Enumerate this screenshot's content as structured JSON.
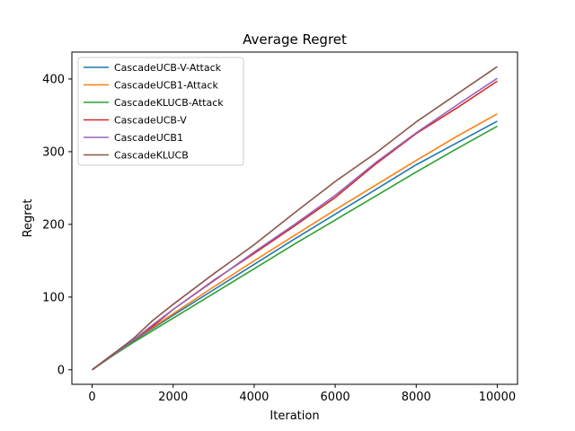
{
  "chart_data": {
    "type": "line",
    "title": "Average Regret",
    "xlabel": "Iteration",
    "ylabel": "Regret",
    "xlim": [
      -500,
      10500
    ],
    "ylim": [
      -20,
      437
    ],
    "xticks": [
      0,
      2000,
      4000,
      6000,
      8000,
      10000
    ],
    "xtick_labels": [
      "0",
      "2000",
      "4000",
      "6000",
      "8000",
      "10000"
    ],
    "yticks": [
      0,
      100,
      200,
      300,
      400
    ],
    "ytick_labels": [
      "0",
      "100",
      "200",
      "300",
      "400"
    ],
    "grid": false,
    "legend_position": "top-left",
    "series": [
      {
        "name": "CascadeUCB-V-Attack",
        "color": "#1f77b4",
        "x": [
          0,
          500,
          1000,
          2000,
          3000,
          4000,
          5000,
          6000,
          7000,
          8000,
          9000,
          10000
        ],
        "y": [
          0,
          20,
          39,
          75,
          110,
          145,
          180,
          214,
          248,
          282,
          312,
          342
        ]
      },
      {
        "name": "CascadeUCB1-Attack",
        "color": "#ff7f0e",
        "x": [
          0,
          500,
          1000,
          2000,
          3000,
          4000,
          5000,
          6000,
          7000,
          8000,
          9000,
          10000
        ],
        "y": [
          0,
          20,
          40,
          77,
          114,
          150,
          185,
          220,
          254,
          288,
          321,
          352
        ]
      },
      {
        "name": "CascadeKLUCB-Attack",
        "color": "#2ca02c",
        "x": [
          0,
          500,
          1000,
          2000,
          3000,
          4000,
          5000,
          6000,
          7000,
          8000,
          9000,
          10000
        ],
        "y": [
          0,
          19,
          37,
          71,
          105,
          139,
          173,
          206,
          239,
          272,
          304,
          335
        ]
      },
      {
        "name": "CascadeUCB-V",
        "color": "#d62728",
        "x": [
          0,
          500,
          1000,
          1500,
          2000,
          3000,
          4000,
          5000,
          6000,
          7000,
          8000,
          9000,
          10000
        ],
        "y": [
          0,
          20,
          40,
          60,
          83,
          123,
          160,
          198,
          237,
          283,
          325,
          360,
          397
        ]
      },
      {
        "name": "CascadeUCB1",
        "color": "#9467bd",
        "x": [
          0,
          500,
          1000,
          1500,
          2000,
          3000,
          4000,
          5000,
          6000,
          7000,
          8000,
          9000,
          10000
        ],
        "y": [
          0,
          20,
          40,
          62,
          83,
          122,
          162,
          200,
          240,
          285,
          326,
          364,
          401
        ]
      },
      {
        "name": "CascadeKLUCB",
        "color": "#8c564b",
        "x": [
          0,
          500,
          1000,
          1500,
          2000,
          3000,
          4000,
          5000,
          6000,
          7000,
          8000,
          9000,
          10000
        ],
        "y": [
          0,
          21,
          42,
          68,
          90,
          132,
          172,
          216,
          259,
          298,
          341,
          379,
          417
        ]
      }
    ]
  }
}
